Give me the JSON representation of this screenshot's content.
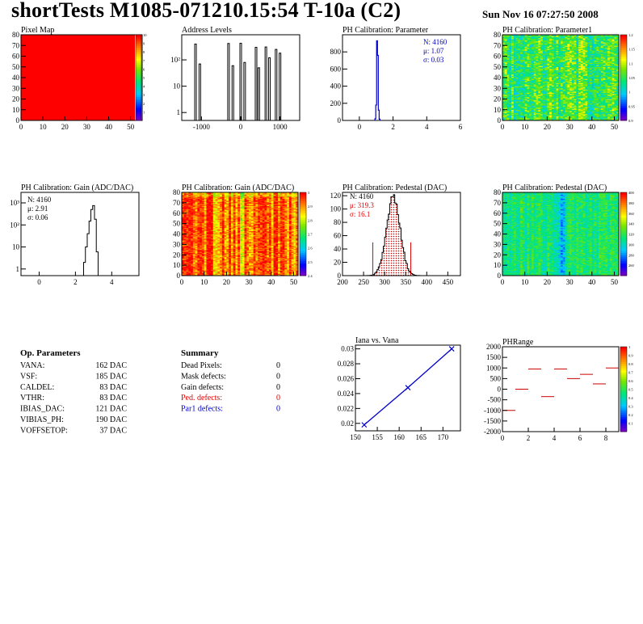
{
  "header": {
    "title": "shortTests M1085-071210.15:54 T-10a (C2)",
    "date": "Sun Nov 16 07:27:50 2008"
  },
  "colors": {
    "hist_line": "#000000",
    "stats_blue": "#0000cc",
    "stats_red": "#e00000",
    "fit_line": "#0000cc",
    "cut_line": "#e00000",
    "pedestal_fill": "#cc0000",
    "phrange_mark": "#cc0000",
    "pixelmap_fill": "#ff0000"
  },
  "chart_data": [
    {
      "id": "pixel-map",
      "type": "heatmap",
      "title": "Pixel Map",
      "xlim": [
        0,
        52
      ],
      "ylim": [
        0,
        80
      ],
      "xticks": [
        "0",
        "10",
        "20",
        "30",
        "40",
        "50"
      ],
      "yticks": [
        "0",
        "10",
        "20",
        "30",
        "40",
        "50",
        "60",
        "70",
        "80"
      ],
      "uniform_value": 10,
      "zlim": [
        0,
        10
      ],
      "zticks": [
        "1",
        "2",
        "3",
        "4",
        "5",
        "6",
        "7",
        "8",
        "9",
        "10"
      ]
    },
    {
      "id": "address-levels",
      "type": "bar",
      "title": "Address Levels",
      "xlim": [
        -1500,
        1500
      ],
      "xticks": [
        "-1000",
        "0",
        "1000"
      ],
      "yscale": "log",
      "ylim": [
        0.5,
        900
      ],
      "yticks": [
        "1",
        "10",
        "10²"
      ],
      "peaks": [
        {
          "x": -1150,
          "y": 400
        },
        {
          "x": -1040,
          "y": 70
        },
        {
          "x": -310,
          "y": 420
        },
        {
          "x": -200,
          "y": 60
        },
        {
          "x": 0,
          "y": 430
        },
        {
          "x": 100,
          "y": 80
        },
        {
          "x": 390,
          "y": 300
        },
        {
          "x": 460,
          "y": 50
        },
        {
          "x": 640,
          "y": 310
        },
        {
          "x": 730,
          "y": 120
        },
        {
          "x": 900,
          "y": 250
        },
        {
          "x": 1000,
          "y": 180
        }
      ]
    },
    {
      "id": "ph-calibration-parameter",
      "type": "bar",
      "title": "PH Calibration: Parameter",
      "xlim": [
        -1,
        6
      ],
      "ylim": [
        0,
        1000
      ],
      "xticks": [
        "0",
        "2",
        "4",
        "6"
      ],
      "yticks": [
        "0",
        "200",
        "400",
        "600",
        "800"
      ],
      "bins_x": [
        0.95,
        1.0,
        1.05,
        1.1,
        1.15,
        1.2
      ],
      "bins_y": [
        20,
        180,
        930,
        760,
        120,
        15
      ],
      "stats": {
        "entries": "N: 4160",
        "mean": "μ: 1.07",
        "sigma": "σ: 0.03"
      }
    },
    {
      "id": "ph-calibration-parameter1",
      "type": "heatmap",
      "title": "PH Calibration: Parameter1",
      "xlim": [
        0,
        52
      ],
      "ylim": [
        0,
        80
      ],
      "xticks": [
        "0",
        "10",
        "20",
        "30",
        "40",
        "50"
      ],
      "yticks": [
        "0",
        "10",
        "20",
        "30",
        "40",
        "50",
        "60",
        "70",
        "80"
      ],
      "zlim": [
        0.9,
        1.2
      ],
      "zticks": [
        "0.9",
        "0.95",
        "1",
        "1.05",
        "1.1",
        "1.15",
        "1.2"
      ]
    },
    {
      "id": "gain-histogram",
      "type": "bar",
      "title": "PH Calibration: Gain (ADC/DAC)",
      "xlim": [
        -1,
        5.5
      ],
      "xticks": [
        "0",
        "2",
        "4"
      ],
      "yscale": "log",
      "ylim": [
        0.5,
        3000
      ],
      "yticks": [
        "1",
        "10",
        "10²",
        "10³"
      ],
      "bins_x": [
        2.5,
        2.6,
        2.7,
        2.8,
        2.9,
        3.0,
        3.1,
        3.2
      ],
      "bins_y": [
        2,
        10,
        40,
        150,
        500,
        750,
        180,
        6
      ],
      "stats": {
        "entries": "N: 4160",
        "mean": "μ: 2.91",
        "sigma": "σ: 0.06"
      }
    },
    {
      "id": "gain-map",
      "type": "heatmap",
      "title": "PH Calibration: Gain (ADC/DAC)",
      "xlim": [
        0,
        52
      ],
      "ylim": [
        0,
        80
      ],
      "xticks": [
        "0",
        "10",
        "20",
        "30",
        "40",
        "50"
      ],
      "yticks": [
        "0",
        "10",
        "20",
        "30",
        "40",
        "50",
        "60",
        "70",
        "80"
      ],
      "zlim": [
        2.4,
        3.0
      ],
      "zticks": [
        "2.4",
        "2.5",
        "2.6",
        "2.7",
        "2.8",
        "2.9",
        "3"
      ]
    },
    {
      "id": "pedestal-histogram",
      "type": "bar",
      "title": "PH Calibration: Pedestal (DAC)",
      "xlim": [
        200,
        480
      ],
      "ylim": [
        0,
        125
      ],
      "xticks": [
        "200",
        "250",
        "300",
        "350",
        "400",
        "450"
      ],
      "yticks": [
        "0",
        "20",
        "40",
        "60",
        "80",
        "100",
        "120"
      ],
      "mean": 319.3,
      "sigma": 16.1,
      "peak": 118,
      "cuts": [
        272,
        362
      ],
      "cut_height": 50,
      "stats": {
        "entries": "N: 4160",
        "mean": "μ: 319.3",
        "sigma": "σ: 16.1"
      }
    },
    {
      "id": "pedestal-map",
      "type": "heatmap",
      "title": "PH Calibration: Pedestal (DAC)",
      "xlim": [
        0,
        52
      ],
      "ylim": [
        0,
        80
      ],
      "xticks": [
        "0",
        "10",
        "20",
        "30",
        "40",
        "50"
      ],
      "yticks": [
        "0",
        "10",
        "20",
        "30",
        "40",
        "50",
        "60",
        "70",
        "80"
      ],
      "zlim": [
        240,
        400
      ],
      "zticks": [
        "260",
        "280",
        "300",
        "320",
        "340",
        "360",
        "380",
        "400"
      ]
    },
    {
      "id": "iana-vs-vana",
      "type": "line",
      "title": "Iana vs. Vana",
      "xlim": [
        150,
        174
      ],
      "ylim": [
        0.019,
        0.0305
      ],
      "xticks": [
        "150",
        "155",
        "160",
        "165",
        "170"
      ],
      "yticks": [
        "0.02",
        "0.022",
        "0.024",
        "0.026",
        "0.028",
        "0.03"
      ],
      "x": [
        152,
        162,
        172
      ],
      "y": [
        0.0198,
        0.0248,
        0.03
      ]
    },
    {
      "id": "phrange",
      "type": "scatter",
      "title": "PHRange",
      "xlim": [
        0,
        9
      ],
      "ylim": [
        -2000,
        2000
      ],
      "xticks": [
        "0",
        "2",
        "4",
        "6",
        "8"
      ],
      "yticks": [
        "-2000",
        "-1500",
        "-1000",
        "-500",
        "0",
        "500",
        "1000",
        "1500",
        "2000"
      ],
      "x": [
        0,
        1,
        2,
        3,
        4,
        5,
        6,
        7,
        8
      ],
      "y": [
        -1000,
        0,
        950,
        -350,
        950,
        500,
        700,
        250,
        1000
      ],
      "zlim": [
        0,
        1
      ],
      "zticks": [
        "0.1",
        "0.2",
        "0.3",
        "0.4",
        "0.5",
        "0.6",
        "0.7",
        "0.8",
        "0.9",
        "1"
      ]
    }
  ],
  "op_parameters": {
    "title": "Op. Parameters",
    "rows": [
      {
        "name": "VANA:",
        "value": "162 DAC"
      },
      {
        "name": "VSF:",
        "value": "185 DAC"
      },
      {
        "name": "CALDEL:",
        "value": "83 DAC"
      },
      {
        "name": "VTHR:",
        "value": "83 DAC"
      },
      {
        "name": "IBIAS_DAC:",
        "value": "121 DAC"
      },
      {
        "name": "VIBIAS_PH:",
        "value": "190 DAC"
      },
      {
        "name": "VOFFSETOP:",
        "value": "37 DAC"
      }
    ]
  },
  "summary": {
    "title": "Summary",
    "rows": [
      {
        "name": "Dead Pixels:",
        "value": "0",
        "color": "#000000"
      },
      {
        "name": "Mask defects:",
        "value": "0",
        "color": "#000000"
      },
      {
        "name": "Gain defects:",
        "value": "0",
        "color": "#000000"
      },
      {
        "name": "Ped. defects:",
        "value": "0",
        "color": "#e00000"
      },
      {
        "name": "Par1 defects:",
        "value": "0",
        "color": "#0000cc"
      }
    ]
  }
}
